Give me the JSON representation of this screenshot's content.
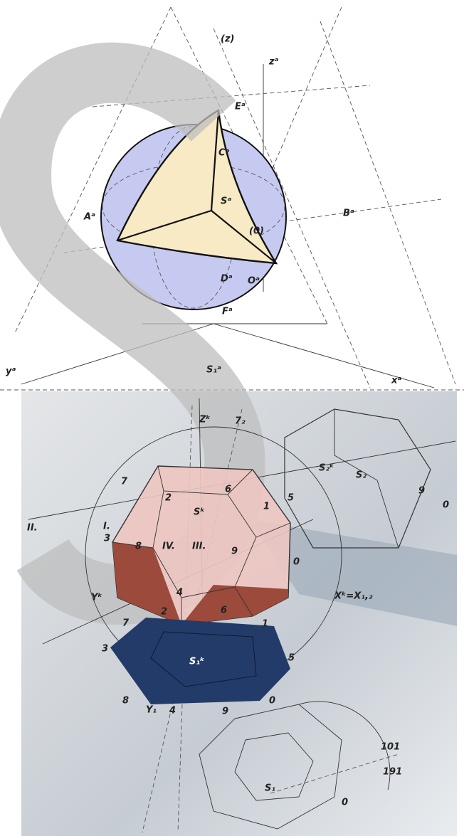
{
  "labels": [
    "(z)",
    "zᵃ",
    "Eᵃ",
    "Cᵃ",
    "Sᵃ",
    "Aᵃ",
    "Bᵃ",
    "(0)",
    "Dᵃ",
    "Oᵃ",
    "Fᵃ",
    "yᵃ",
    "S₁ᵃ",
    "xᵃ",
    "Zᵏ",
    "7₂",
    "S₂ᵏ",
    "S₂",
    "9",
    "0",
    "II.",
    "7",
    "2",
    "Sᵏ",
    "6",
    "5",
    "1",
    "I.",
    "3",
    "8",
    "IV.",
    "III.",
    "9",
    "0",
    "4",
    "Xᵏ=X₁,₂",
    "Yᵏ",
    "2",
    "6",
    "1",
    "7",
    "3",
    "S₁ᵏ",
    "5",
    "8",
    "Y₁",
    "4",
    "9",
    "0",
    "S₁",
    "0",
    "101",
    "191"
  ]
}
